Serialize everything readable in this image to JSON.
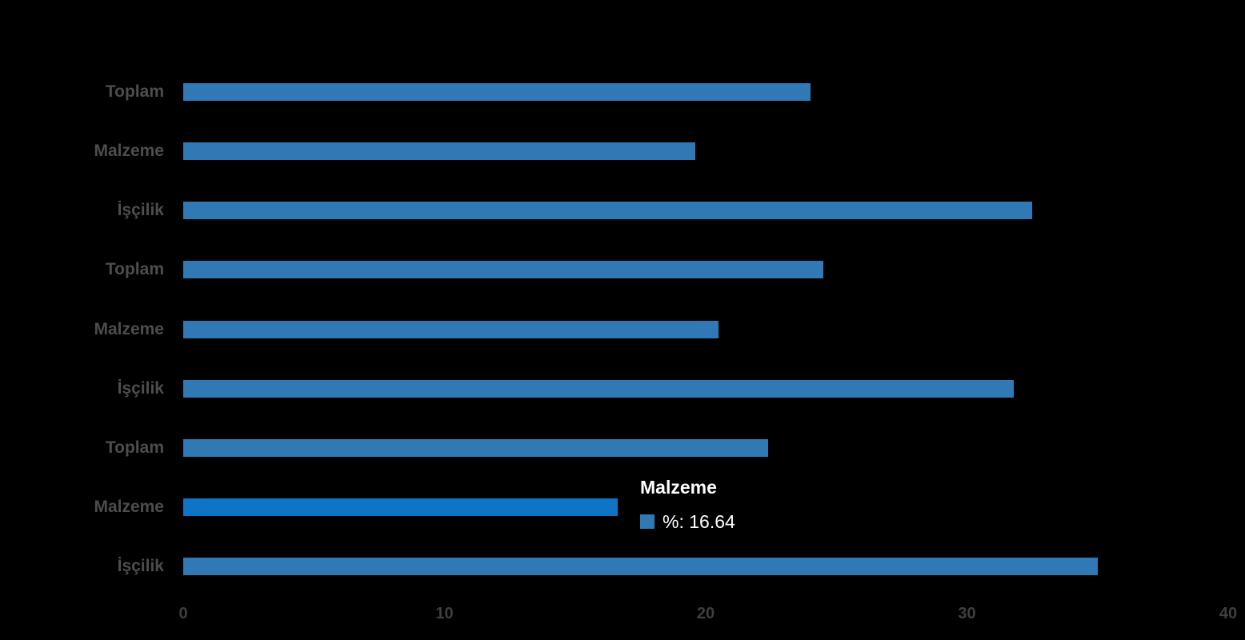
{
  "chart_data": {
    "type": "bar",
    "orientation": "horizontal",
    "title": "",
    "xlabel": "",
    "ylabel": "",
    "categories": [
      "Toplam",
      "Malzeme",
      "İşçilik",
      "Toplam",
      "Malzeme",
      "İşçilik",
      "Toplam",
      "Malzeme",
      "İşçilik"
    ],
    "values": [
      24.0,
      19.6,
      32.5,
      24.5,
      20.5,
      31.8,
      22.4,
      16.64,
      35.0
    ],
    "highlighted_index": 7,
    "x_ticks": [
      "0",
      "10",
      "20",
      "30",
      "40"
    ],
    "x_tick_values": [
      0,
      10,
      20,
      30,
      40
    ],
    "xlim": [
      0,
      40
    ],
    "grid": false,
    "legend_position": "none",
    "colors": {
      "bar": "#3179b5",
      "bar_highlight": "#0e74c6",
      "category_label": "#4d4d4d",
      "tick_label": "#3f3f3f",
      "background": "#000000",
      "tooltip_text": "#ffffff"
    }
  },
  "tooltip": {
    "title": "Malzeme",
    "value_text": "%: 16.64"
  }
}
